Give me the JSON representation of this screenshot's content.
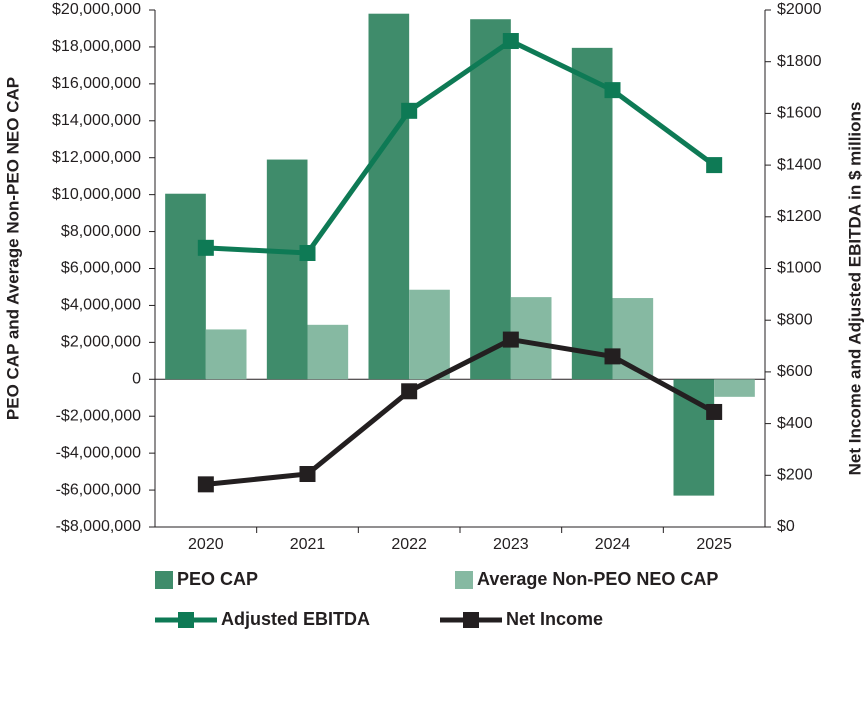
{
  "chart_data": {
    "type": "bar_line",
    "categories": [
      "2020",
      "2021",
      "2022",
      "2023",
      "2024",
      "2025"
    ],
    "ylabel": "PEO CAP and Average Non-PEO NEO CAP",
    "y2label": "Net Income and Adjusted EBITDA in $ millions",
    "series": [
      {
        "name": "PEO CAP",
        "type": "bar",
        "color": "#3f8c6b",
        "values": [
          10050000,
          11900000,
          19800000,
          19500000,
          17950000,
          -6300000
        ]
      },
      {
        "name": "Average Non-PEO NEO CAP",
        "type": "bar",
        "color": "#86b9a2",
        "values": [
          2700000,
          2950000,
          4850000,
          4450000,
          4400000,
          -950000
        ]
      },
      {
        "name": "Adjusted EBITDA",
        "type": "line",
        "axis": "y2",
        "color": "#0e7a55",
        "values": [
          1080,
          1060,
          1610,
          1880,
          1690,
          1400
        ]
      },
      {
        "name": "Net Income",
        "type": "line",
        "axis": "y2",
        "color": "#231f20",
        "values": [
          165,
          205,
          525,
          725,
          660,
          445
        ]
      }
    ],
    "ylim": [
      -8000000,
      20000000
    ],
    "yticks": [
      {
        "value": -8000000,
        "label": "-$8,000,000"
      },
      {
        "value": -6000000,
        "label": "-$6,000,000"
      },
      {
        "value": -4000000,
        "label": "-$4,000,000"
      },
      {
        "value": -2000000,
        "label": "-$2,000,000"
      },
      0,
      {
        "value": 2000000,
        "label": "$2,000,000"
      },
      {
        "value": 4000000,
        "label": "$4,000,000"
      },
      {
        "value": 6000000,
        "label": "$6,000,000"
      },
      {
        "value": 8000000,
        "label": "$8,000,000"
      },
      {
        "value": 10000000,
        "label": "$10,000,000"
      },
      {
        "value": 12000000,
        "label": "$12,000,000"
      },
      {
        "value": 14000000,
        "label": "$14,000,000"
      },
      {
        "value": 16000000,
        "label": "$16,000,000"
      },
      {
        "value": 18000000,
        "label": "$18,000,000"
      },
      {
        "value": 20000000,
        "label": "$20,000,000"
      }
    ],
    "y2lim": [
      0,
      2000
    ],
    "y2ticks": [
      {
        "value": 0,
        "label": "$0"
      },
      {
        "value": 200,
        "label": "$200"
      },
      {
        "value": 400,
        "label": "$400"
      },
      {
        "value": 600,
        "label": "$600"
      },
      {
        "value": 800,
        "label": "$800"
      },
      {
        "value": 1000,
        "label": "$1000"
      },
      {
        "value": 1200,
        "label": "$1200"
      },
      {
        "value": 1400,
        "label": "$1400"
      },
      {
        "value": 1600,
        "label": "$1600"
      },
      {
        "value": 1800,
        "label": "$1800"
      },
      {
        "value": 2000,
        "label": "$2000"
      }
    ]
  }
}
